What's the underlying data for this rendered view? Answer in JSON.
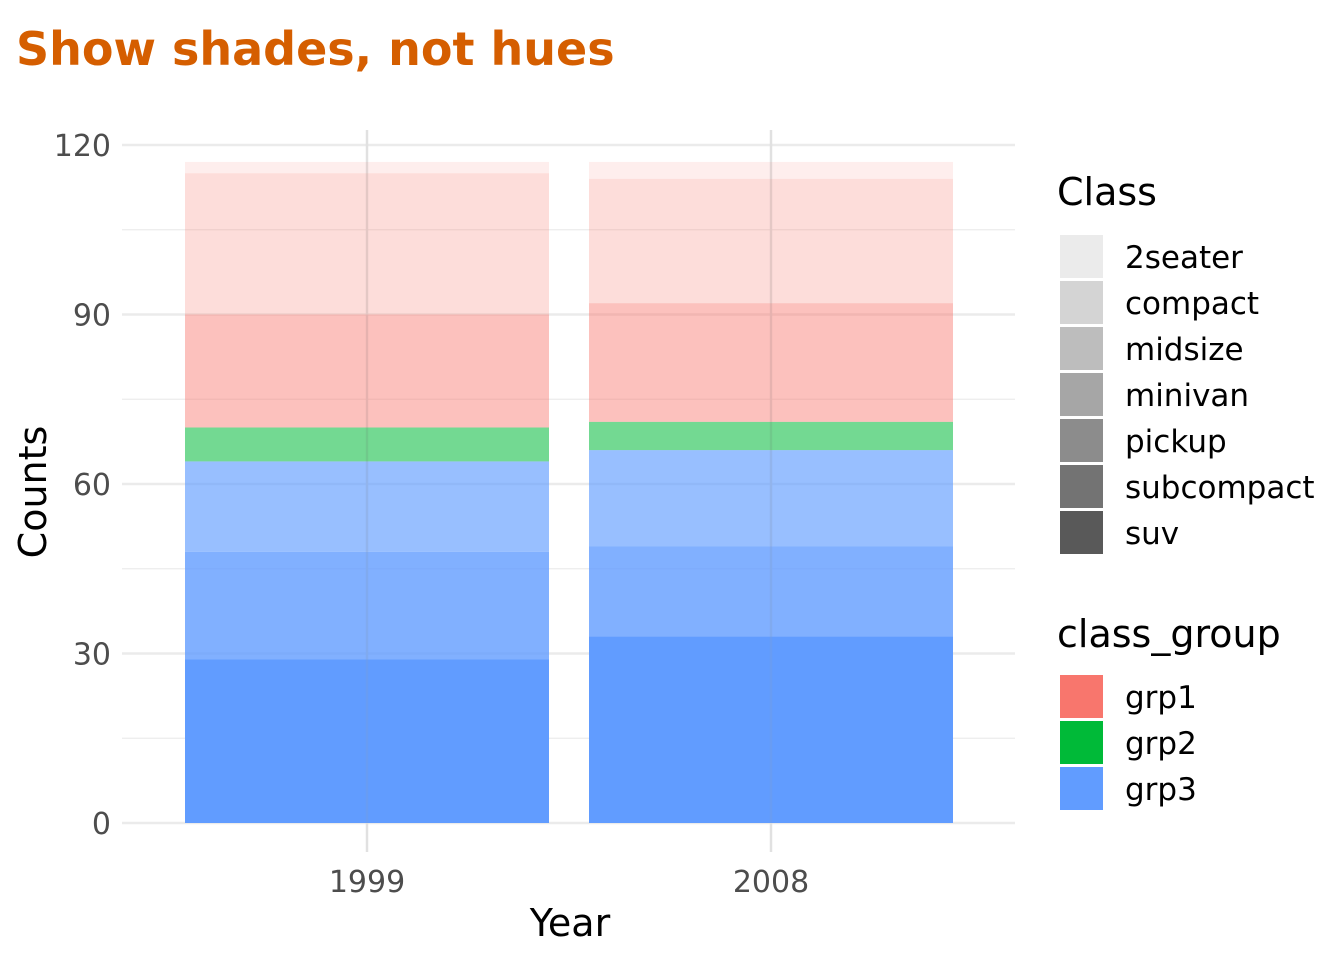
{
  "chart_data": {
    "type": "bar",
    "stacked": true,
    "title": "Show shades, not hues",
    "title_color": "#D55E00",
    "xlabel": "Year",
    "ylabel": "Counts",
    "categories": [
      "1999",
      "2008"
    ],
    "ylim": [
      0,
      120
    ],
    "y_ticks": [
      0,
      30,
      60,
      90,
      120
    ],
    "grid": true,
    "legend_position": "right",
    "series": [
      {
        "name": "suv",
        "group": "grp3",
        "alpha": 1.0,
        "values": [
          29,
          33
        ]
      },
      {
        "name": "subcompact",
        "group": "grp3",
        "alpha": 0.8,
        "values": [
          19,
          16
        ]
      },
      {
        "name": "pickup",
        "group": "grp3",
        "alpha": 0.65,
        "values": [
          16,
          17
        ]
      },
      {
        "name": "minivan",
        "group": "grp2",
        "alpha": 0.55,
        "values": [
          6,
          5
        ]
      },
      {
        "name": "midsize",
        "group": "grp1",
        "alpha": 0.45,
        "values": [
          20,
          21
        ]
      },
      {
        "name": "compact",
        "group": "grp1",
        "alpha": 0.25,
        "values": [
          25,
          22
        ]
      },
      {
        "name": "2seater",
        "group": "grp1",
        "alpha": 0.12,
        "values": [
          2,
          3
        ]
      }
    ],
    "legends": [
      {
        "title": "Class",
        "items": [
          {
            "label": "2seater",
            "color": "#EBEBEB"
          },
          {
            "label": "compact",
            "color": "#D4D4D4"
          },
          {
            "label": "midsize",
            "color": "#BDBDBD"
          },
          {
            "label": "minivan",
            "color": "#A6A6A6"
          },
          {
            "label": "pickup",
            "color": "#8C8C8C"
          },
          {
            "label": "subcompact",
            "color": "#737373"
          },
          {
            "label": "suv",
            "color": "#595959"
          }
        ]
      },
      {
        "title": "class_group",
        "items": [
          {
            "label": "grp1",
            "color": "#F8766D"
          },
          {
            "label": "grp2",
            "color": "#00BA38"
          },
          {
            "label": "grp3",
            "color": "#619CFF"
          }
        ]
      }
    ],
    "group_colors": {
      "grp1": "#F8766D",
      "grp2": "#00BA38",
      "grp3": "#619CFF"
    }
  }
}
